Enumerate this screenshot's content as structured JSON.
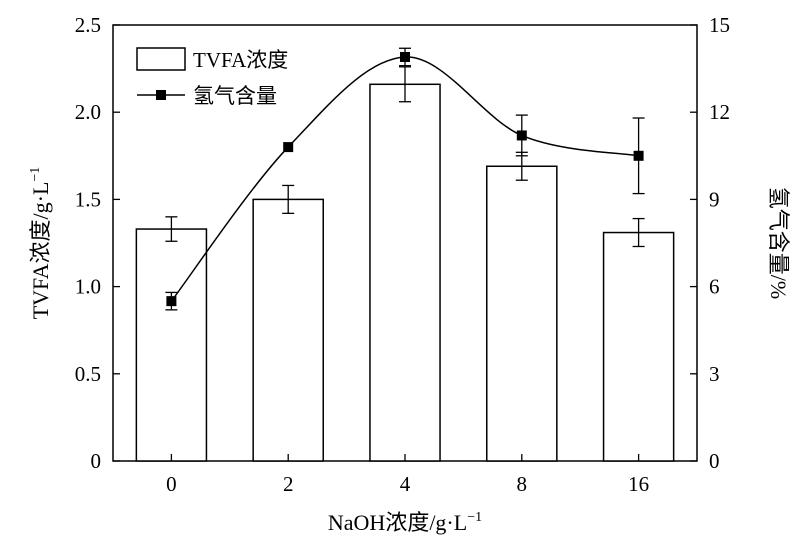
{
  "chart_data": {
    "type": "bar",
    "categories": [
      "0",
      "2",
      "4",
      "8",
      "16"
    ],
    "xlabel": "NaOH浓度/g·L",
    "xlabel_sup": "−1",
    "ylabel_left": "TVFA浓度/g·L",
    "ylabel_left_sup": "−1",
    "ylabel_right": "氢气含量/%",
    "ylim_left": [
      0,
      2.5
    ],
    "ylim_right": [
      0,
      15
    ],
    "yticks_left": [
      "0",
      "0.5",
      "1.0",
      "1.5",
      "2.0",
      "2.5"
    ],
    "yticks_right": [
      "0",
      "3",
      "6",
      "9",
      "12",
      "15"
    ],
    "grid": false,
    "legend_position": "top-left",
    "series": [
      {
        "name": "TVFA浓度",
        "type": "bar",
        "axis": "left",
        "values": [
          1.33,
          1.5,
          2.16,
          1.69,
          1.31
        ],
        "errors": [
          0.07,
          0.08,
          0.1,
          0.08,
          0.08
        ]
      },
      {
        "name": "氢气含量",
        "type": "line",
        "axis": "right",
        "values": [
          5.5,
          10.8,
          13.9,
          11.2,
          10.5
        ],
        "errors": [
          0.3,
          0.0,
          0.3,
          0.7,
          1.3
        ]
      }
    ]
  }
}
